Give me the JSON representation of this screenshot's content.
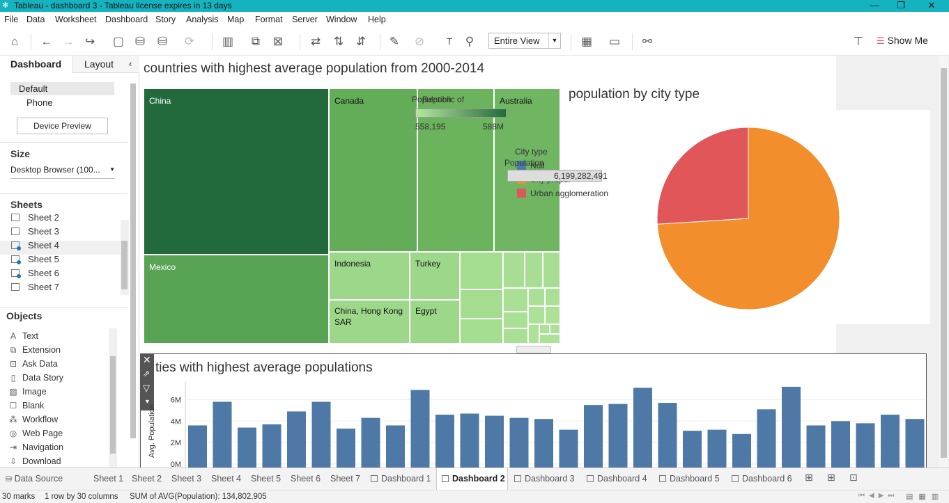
{
  "window": {
    "title": "Tableau - dashboard 3 - Tableau license expires in 13 days"
  },
  "menu": [
    "File",
    "Data",
    "Worksheet",
    "Dashboard",
    "Story",
    "Analysis",
    "Map",
    "Format",
    "Server",
    "Window",
    "Help"
  ],
  "toolbar": {
    "fit": "Entire View",
    "show_me": "Show Me"
  },
  "left_panel": {
    "tab_dashboard": "Dashboard",
    "tab_layout": "Layout",
    "device_default": "Default",
    "device_phone": "Phone",
    "device_preview": "Device Preview",
    "size_header": "Size",
    "size_value": "Desktop Browser (100...",
    "sheets_header": "Sheets",
    "sheets": [
      "Sheet 2",
      "Sheet 3",
      "Sheet 4",
      "Sheet 5",
      "Sheet 6",
      "Sheet 7"
    ],
    "objects_header": "Objects",
    "objects": [
      {
        "label": "Text",
        "icon": "text-icon"
      },
      {
        "label": "Extension",
        "icon": "extension-icon"
      },
      {
        "label": "Ask Data",
        "icon": "ask-data-icon"
      },
      {
        "label": "Data Story",
        "icon": "data-story-icon"
      },
      {
        "label": "Image",
        "icon": "image-icon"
      },
      {
        "label": "Blank",
        "icon": "blank-icon"
      },
      {
        "label": "Workflow",
        "icon": "workflow-icon"
      },
      {
        "label": "Web Page",
        "icon": "web-page-icon"
      },
      {
        "label": "Navigation",
        "icon": "navigation-icon"
      },
      {
        "label": "Download",
        "icon": "download-icon"
      }
    ]
  },
  "dashboard": {
    "treemap_title": "countries with highest average population from 2000-2014",
    "pie_title": "population by city type",
    "bar_title": "ties with highest average populations",
    "treemap_legend": {
      "title": "Population",
      "min": "558,195",
      "max": "588M",
      "overlap_label": "Republic of"
    },
    "pie_legend": {
      "title": "City type",
      "items": [
        "Null",
        "City proper",
        "Urban agglomeration"
      ]
    },
    "tooltip": {
      "label": "Population",
      "value": "6,199,282,491"
    },
    "treemap_labels": [
      "China",
      "Mexico",
      "Canada",
      "Australia",
      "Indonesia",
      "Turkey",
      "China, Hong Kong SAR",
      "Egypt"
    ]
  },
  "chart_data": [
    {
      "type": "heatmap",
      "title": "countries with highest average population from 2000-2014",
      "categories": [
        "China",
        "Mexico",
        "Canada",
        "Republic of",
        "Australia",
        "Indonesia",
        "Turkey",
        "China, Hong Kong SAR",
        "Egypt"
      ]
    },
    {
      "type": "pie",
      "title": "population by city type",
      "categories": [
        "Null",
        "City proper",
        "Urban agglomeration"
      ],
      "values": [
        0,
        74,
        26
      ],
      "colors": [
        "#4e79a7",
        "#f28e2b",
        "#e15759"
      ]
    },
    {
      "type": "bar",
      "title": "ties with highest average populations",
      "ylabel": "Avg. Population",
      "yticks": [
        "0M",
        "2M",
        "4M",
        "6M"
      ],
      "ylim": [
        0,
        7000000
      ],
      "values": [
        3600000,
        5800000,
        3400000,
        3700000,
        4900000,
        5800000,
        3300000,
        4300000,
        3600000,
        6900000,
        4600000,
        4700000,
        4500000,
        4300000,
        4200000,
        3200000,
        5500000,
        5600000,
        7100000,
        5700000,
        3100000,
        3200000,
        2800000,
        5100000,
        7200000,
        3600000,
        4000000,
        3800000,
        4600000,
        4200000
      ]
    }
  ],
  "tabs": [
    "Data Source",
    "Sheet 1",
    "Sheet 2",
    "Sheet 3",
    "Sheet 4",
    "Sheet 5",
    "Sheet 6",
    "Sheet 7",
    "Dashboard 1",
    "Dashboard 2",
    "Dashboard 3",
    "Dashboard 4",
    "Dashboard 5",
    "Dashboard 6"
  ],
  "status": {
    "marks": "30 marks",
    "rows": "1 row by 30 columns",
    "sum": "SUM of AVG(Population): 134,802,905"
  }
}
